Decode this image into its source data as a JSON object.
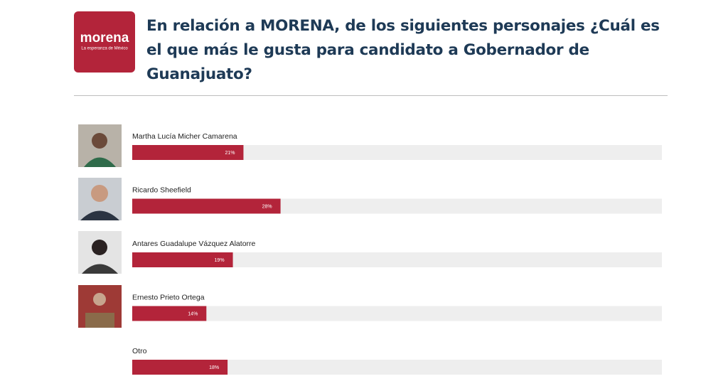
{
  "chart_data": {
    "type": "bar",
    "orientation": "horizontal",
    "logo_text": "morena",
    "logo_subtext": "La esperanza de México",
    "title": "En relación a MORENA, de los siguientes personajes ¿Cuál es el que más le gusta para candidato a Gobernador de Guanajuato?",
    "categories": [
      "Martha Lucía Micher Camarena",
      "Ricardo Sheefield",
      "Antares Guadalupe Vázquez Alatorre",
      "Ernesto Prieto Ortega",
      "Otro"
    ],
    "values": [
      21,
      28,
      19,
      14,
      18
    ],
    "value_labels": [
      "21%",
      "28%",
      "19%",
      "14%",
      "18%"
    ],
    "xlim": [
      0,
      100
    ],
    "color": "#b3243a"
  }
}
